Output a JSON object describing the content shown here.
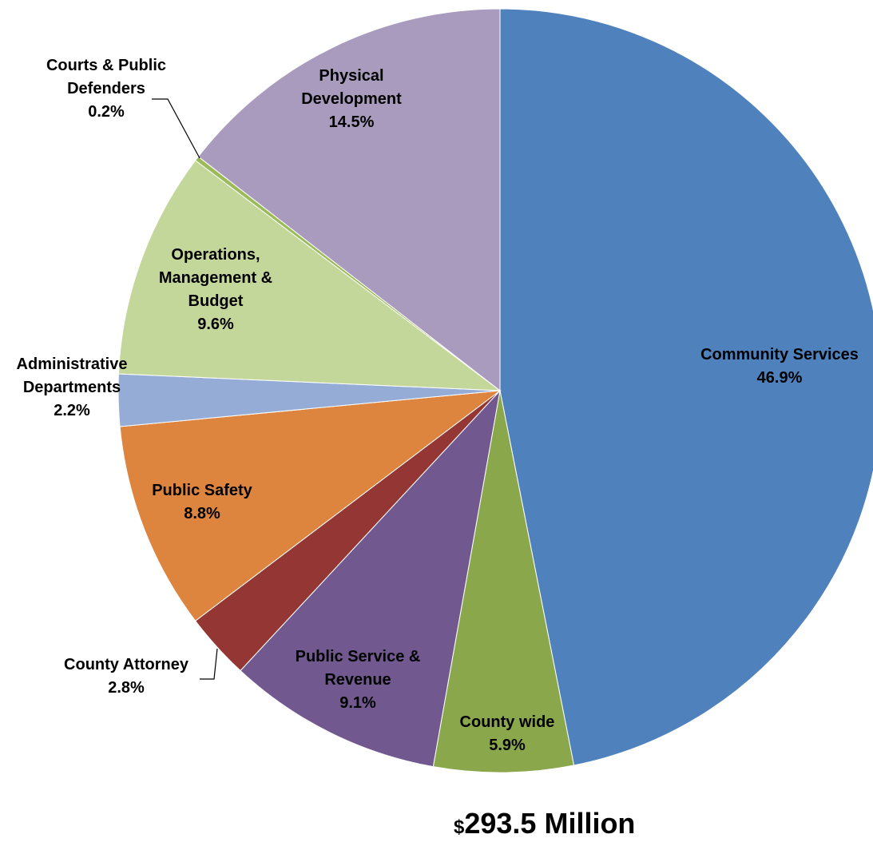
{
  "chart_data": {
    "type": "pie",
    "start_angle_deg": 0,
    "direction": "clockwise",
    "slices": [
      {
        "label_lines": [
          "Community Services"
        ],
        "pct_label": "46.9%",
        "value": 46.9,
        "color": "#4F81BD"
      },
      {
        "label_lines": [
          "County wide"
        ],
        "pct_label": "5.9%",
        "value": 5.9,
        "color": "#8BA74C"
      },
      {
        "label_lines": [
          "Public Service &",
          "Revenue"
        ],
        "pct_label": "9.1%",
        "value": 9.1,
        "color": "#71588F"
      },
      {
        "label_lines": [
          "County Attorney"
        ],
        "pct_label": "2.8%",
        "value": 2.8,
        "color": "#943634"
      },
      {
        "label_lines": [
          "Public Safety"
        ],
        "pct_label": "8.8%",
        "value": 8.8,
        "color": "#DD843E"
      },
      {
        "label_lines": [
          "Administrative",
          "Departments"
        ],
        "pct_label": "2.2%",
        "value": 2.2,
        "color": "#95ADD6"
      },
      {
        "label_lines": [
          "Operations,",
          "Management &",
          "Budget"
        ],
        "pct_label": "9.6%",
        "value": 9.6,
        "color": "#C4D79B"
      },
      {
        "label_lines": [
          "Courts & Public",
          "Defenders"
        ],
        "pct_label": "0.2%",
        "value": 0.2,
        "color": "#9BBB59"
      },
      {
        "label_lines": [
          "Physical",
          "Development"
        ],
        "pct_label": "14.5%",
        "value": 14.5,
        "color": "#A99BBD"
      }
    ]
  },
  "total": {
    "currency": "$",
    "amount": "293.5 Million"
  }
}
